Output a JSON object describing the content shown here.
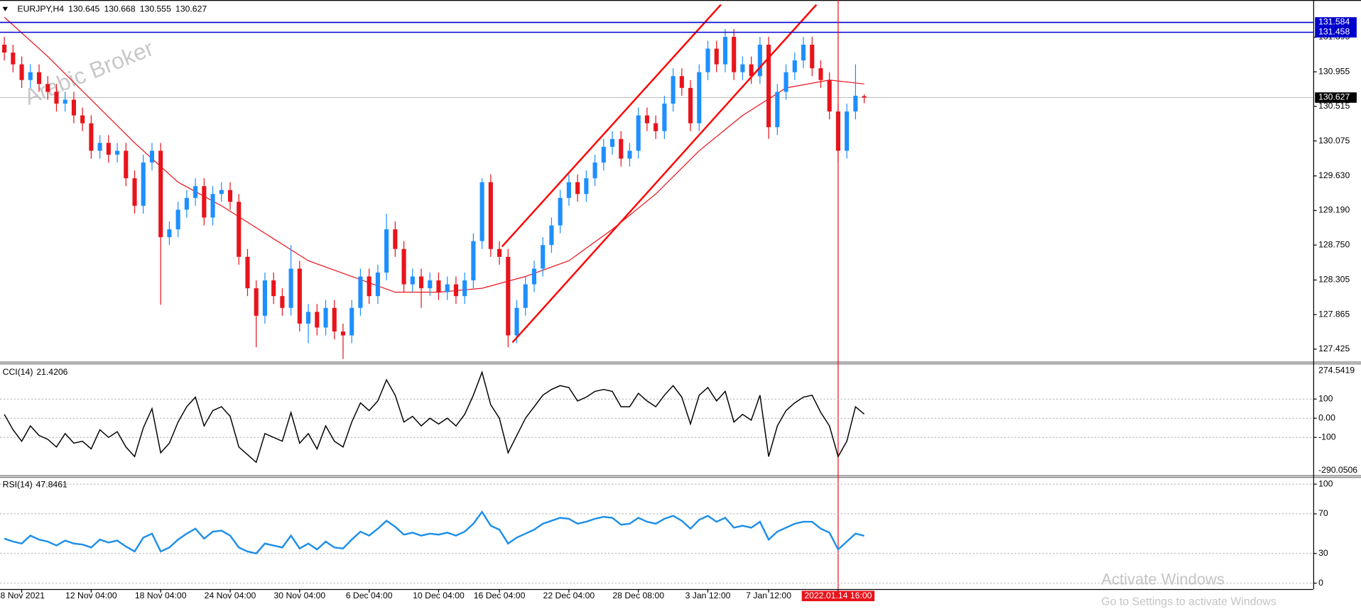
{
  "chart_data": [
    {
      "type": "candlestick",
      "title": "EURJPY,H4",
      "categories": [
        null,
        null,
        "8 Nov 2021",
        null,
        null,
        null,
        null,
        null,
        null,
        null,
        "12 Nov 04:00",
        null,
        null,
        null,
        null,
        null,
        null,
        null,
        "18 Nov 04:00",
        null,
        null,
        null,
        null,
        null,
        null,
        null,
        "24 Nov 04:00",
        null,
        null,
        null,
        null,
        null,
        null,
        null,
        "30 Nov 04:00",
        null,
        null,
        null,
        null,
        null,
        null,
        null,
        "6 Dec 04:00",
        null,
        null,
        null,
        null,
        null,
        null,
        null,
        "10 Dec 04:00",
        null,
        null,
        null,
        null,
        null,
        null,
        "16 Dec 04:00",
        null,
        null,
        null,
        null,
        null,
        null,
        null,
        "22 Dec 04:00",
        null,
        null,
        null,
        null,
        null,
        null,
        null,
        "28 Dec 08:00",
        null,
        null,
        null,
        null,
        null,
        null,
        null,
        "3 Jan 12:00",
        null,
        null,
        null,
        null,
        null,
        null,
        "7 Jan 12:00",
        null,
        null,
        null,
        null,
        null,
        null,
        null,
        "2022.01.14 16:00",
        null,
        null,
        null
      ],
      "open": [
        131.3,
        131.2,
        131.05,
        130.85,
        130.95,
        130.8,
        130.7,
        130.55,
        130.6,
        130.4,
        130.3,
        129.95,
        130.05,
        129.9,
        129.95,
        129.6,
        129.25,
        129.8,
        129.95,
        128.85,
        128.95,
        129.2,
        129.35,
        129.5,
        129.1,
        129.4,
        129.45,
        129.3,
        128.6,
        128.2,
        127.85,
        128.3,
        128.1,
        127.95,
        128.45,
        127.75,
        127.9,
        127.7,
        127.95,
        127.65,
        127.6,
        127.95,
        128.35,
        128.1,
        128.4,
        128.95,
        128.7,
        128.25,
        128.35,
        128.2,
        128.3,
        128.15,
        128.25,
        128.1,
        128.3,
        128.8,
        129.55,
        128.7,
        128.6,
        127.6,
        127.95,
        128.25,
        128.45,
        128.75,
        129.0,
        129.35,
        129.55,
        129.4,
        129.6,
        129.8,
        130.0,
        130.1,
        129.85,
        129.95,
        130.4,
        130.3,
        130.2,
        130.55,
        130.9,
        130.75,
        130.3,
        130.95,
        131.25,
        131.05,
        131.4,
        130.95,
        131.05,
        130.9,
        131.3,
        130.25,
        130.7,
        130.95,
        131.1,
        131.3,
        131.0,
        130.85,
        130.45,
        129.95,
        130.45,
        130.645
      ],
      "high": [
        131.4,
        131.3,
        131.15,
        131.05,
        131.05,
        130.9,
        130.8,
        130.7,
        130.7,
        130.5,
        130.4,
        130.15,
        130.15,
        130.05,
        130.05,
        129.7,
        129.9,
        130.05,
        130.05,
        129.05,
        129.3,
        129.45,
        129.6,
        129.6,
        129.5,
        129.55,
        129.55,
        129.4,
        128.7,
        128.3,
        128.4,
        128.4,
        128.2,
        128.75,
        128.55,
        128.0,
        128.0,
        128.05,
        128.05,
        127.75,
        128.05,
        128.45,
        128.45,
        128.5,
        129.15,
        129.05,
        128.8,
        128.45,
        128.45,
        128.4,
        128.4,
        128.35,
        128.35,
        128.4,
        128.9,
        129.6,
        129.65,
        128.8,
        128.7,
        128.05,
        128.35,
        128.55,
        128.85,
        129.1,
        129.45,
        129.65,
        129.65,
        129.7,
        129.9,
        130.1,
        130.2,
        130.2,
        130.05,
        130.5,
        130.5,
        130.4,
        130.65,
        131.0,
        131.0,
        130.85,
        131.05,
        131.35,
        131.35,
        131.5,
        131.5,
        131.15,
        131.15,
        131.4,
        131.4,
        130.8,
        131.05,
        131.2,
        131.4,
        131.4,
        131.1,
        130.95,
        130.55,
        130.55,
        131.05,
        130.668
      ],
      "low": [
        131.1,
        130.95,
        130.75,
        130.75,
        130.7,
        130.6,
        130.45,
        130.45,
        130.3,
        130.2,
        129.85,
        129.85,
        129.8,
        129.8,
        129.5,
        129.15,
        129.15,
        129.7,
        127.99,
        128.75,
        128.85,
        129.1,
        129.25,
        129.0,
        129.0,
        129.3,
        129.2,
        128.5,
        128.1,
        127.45,
        127.75,
        128.0,
        127.85,
        127.85,
        127.65,
        127.5,
        127.6,
        127.6,
        127.55,
        127.3,
        127.5,
        127.85,
        128.0,
        128.0,
        128.3,
        128.6,
        128.15,
        128.15,
        127.95,
        128.1,
        128.05,
        128.05,
        128.0,
        128.0,
        128.2,
        128.7,
        128.6,
        128.5,
        127.45,
        127.5,
        127.85,
        128.15,
        128.35,
        128.65,
        128.9,
        129.25,
        129.3,
        129.3,
        129.5,
        129.7,
        129.9,
        129.75,
        129.75,
        129.85,
        130.2,
        130.1,
        130.1,
        130.45,
        130.65,
        130.2,
        130.2,
        130.85,
        130.95,
        130.95,
        130.85,
        130.85,
        130.8,
        130.8,
        130.1,
        130.15,
        130.6,
        130.85,
        131.0,
        130.9,
        130.75,
        130.35,
        129.8,
        129.85,
        130.35,
        130.555
      ],
      "close": [
        131.2,
        131.05,
        130.85,
        130.95,
        130.8,
        130.7,
        130.55,
        130.6,
        130.4,
        130.3,
        129.95,
        130.05,
        129.9,
        129.95,
        129.6,
        129.25,
        129.8,
        129.95,
        128.85,
        128.95,
        129.2,
        129.35,
        129.5,
        129.1,
        129.4,
        129.45,
        129.3,
        128.6,
        128.2,
        127.85,
        128.3,
        128.1,
        127.95,
        128.45,
        127.75,
        127.9,
        127.7,
        127.95,
        127.65,
        127.6,
        127.95,
        128.35,
        128.1,
        128.4,
        128.95,
        128.7,
        128.25,
        128.35,
        128.2,
        128.3,
        128.15,
        128.25,
        128.1,
        128.3,
        128.8,
        129.55,
        128.7,
        128.6,
        127.6,
        127.95,
        128.25,
        128.45,
        128.75,
        129.0,
        129.35,
        129.55,
        129.4,
        129.6,
        129.8,
        130.0,
        130.1,
        129.85,
        129.95,
        130.4,
        130.3,
        130.2,
        130.55,
        130.9,
        130.75,
        130.3,
        130.95,
        131.25,
        131.05,
        131.4,
        130.95,
        131.05,
        130.9,
        131.3,
        130.25,
        130.7,
        130.95,
        131.1,
        131.3,
        131.0,
        130.85,
        130.45,
        129.95,
        130.45,
        130.65,
        130.627
      ],
      "up_color": "#1e8fff",
      "down_color": "#e8141c",
      "ylim": [
        127.26,
        131.869
      ],
      "yticks": [
        131.395,
        130.955,
        130.515,
        130.075,
        {
          "value": 129.63,
          "label": "129.630"
        },
        {
          "value": 129.19,
          "label": "129.190"
        },
        {
          "value": 128.75,
          "label": "128.750"
        },
        128.305,
        127.865,
        127.425
      ],
      "ma": {
        "color": "#e8141c",
        "x": [
          0,
          5,
          10,
          15,
          20,
          25,
          30,
          35,
          40,
          45,
          50,
          55,
          60,
          65,
          70,
          75,
          80,
          85,
          90,
          95,
          99
        ],
        "values": [
          131.65,
          131.15,
          130.6,
          130.05,
          129.55,
          129.25,
          128.9,
          128.55,
          128.35,
          128.15,
          128.15,
          128.2,
          128.35,
          128.55,
          128.95,
          129.4,
          129.95,
          130.4,
          130.75,
          130.85,
          130.8
        ]
      },
      "trendlines": [
        {
          "color": "#ff0000",
          "x": [
            57.3,
            82.5
          ],
          "values": [
            128.73,
            131.81
          ]
        },
        {
          "color": "#ff0000",
          "x": [
            58.5,
            93.5
          ],
          "values": [
            127.51,
            131.81
          ]
        }
      ],
      "hlines": [
        {
          "value": 131.584,
          "color": "#0000cd"
        },
        {
          "value": 131.458,
          "color": "#0000cd"
        }
      ],
      "highlight_index": 96,
      "highlight_color": "#e8141c",
      "watermark": "Arabic Broker"
    },
    {
      "type": "line",
      "name": "CCI(14)",
      "color": "#000000",
      "values": [
        20,
        -60,
        -120,
        -40,
        -90,
        -110,
        -150,
        -80,
        -130,
        -120,
        -160,
        -60,
        -100,
        -70,
        -150,
        -200,
        -50,
        50,
        -180,
        -130,
        -20,
        60,
        110,
        -40,
        40,
        60,
        10,
        -150,
        -190,
        -230,
        -80,
        -100,
        -120,
        30,
        -130,
        -80,
        -160,
        -40,
        -120,
        -150,
        -20,
        80,
        40,
        90,
        200,
        120,
        -20,
        10,
        -40,
        0,
        -30,
        0,
        -40,
        20,
        120,
        240,
        70,
        0,
        -180,
        -90,
        0,
        60,
        120,
        150,
        170,
        160,
        90,
        110,
        140,
        150,
        140,
        60,
        60,
        130,
        90,
        60,
        120,
        170,
        110,
        -30,
        120,
        160,
        90,
        140,
        -20,
        20,
        -10,
        120,
        -200,
        -40,
        40,
        80,
        110,
        120,
        30,
        -40,
        -200,
        -120,
        60,
        21.4206
      ],
      "ylim": [
        -290.0506,
        274.5419
      ],
      "yticks": [
        100,
        {
          "value": 0,
          "label": "0.00"
        },
        -100
      ],
      "grid": true
    },
    {
      "type": "line",
      "name": "RSI(14)",
      "color": "#1e8fe8",
      "values": [
        45,
        42,
        40,
        48,
        44,
        42,
        38,
        43,
        40,
        39,
        36,
        44,
        41,
        43,
        37,
        32,
        46,
        50,
        32,
        36,
        44,
        50,
        55,
        45,
        52,
        53,
        48,
        36,
        32,
        30,
        40,
        38,
        36,
        48,
        35,
        40,
        34,
        42,
        36,
        35,
        44,
        52,
        48,
        55,
        63,
        57,
        49,
        51,
        48,
        50,
        49,
        51,
        48,
        52,
        60,
        72,
        58,
        54,
        40,
        46,
        50,
        54,
        60,
        63,
        66,
        65,
        60,
        62,
        65,
        67,
        66,
        59,
        60,
        66,
        62,
        60,
        65,
        68,
        63,
        55,
        64,
        68,
        62,
        66,
        56,
        58,
        56,
        62,
        44,
        52,
        56,
        60,
        62,
        62,
        55,
        51,
        34,
        42,
        50,
        47.8461
      ],
      "ylim": [
        -6,
        106
      ],
      "yticks": [
        100,
        70,
        30,
        0
      ],
      "grid": true
    }
  ],
  "overlay": {
    "activation_title": "Activate Windows",
    "activation_hint": "Go to Settings to activate Windows"
  }
}
